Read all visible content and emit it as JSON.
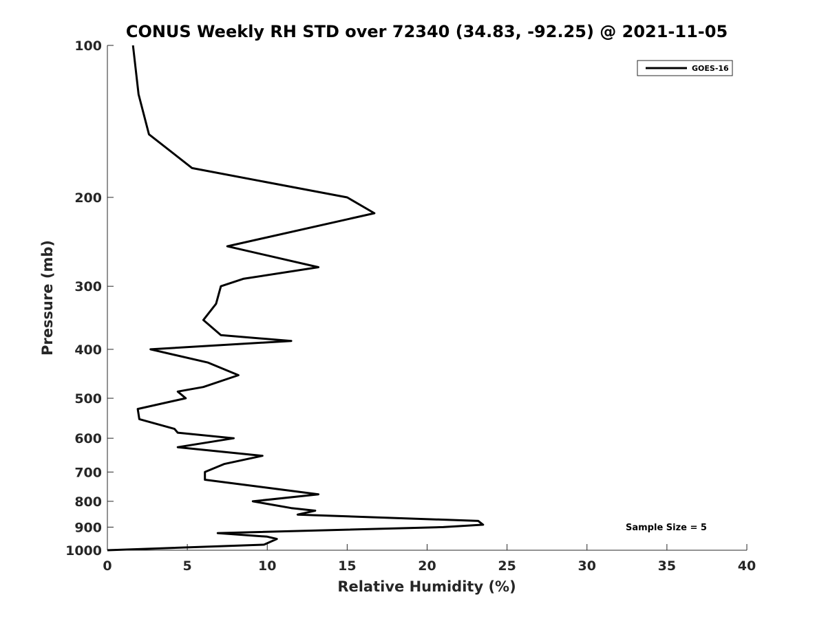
{
  "chart_data": {
    "type": "line",
    "title": "CONUS Weekly RH STD over 72340 (34.83, -92.25) @ 2021-11-05",
    "xlabel": "Relative Humidity (%)",
    "ylabel": "Pressure (mb)",
    "xlim": [
      0,
      40
    ],
    "ylim": [
      100,
      1000
    ],
    "y_scale": "log",
    "y_reversed": true,
    "grid": false,
    "legend_position": "top-right",
    "x_ticks": [
      0,
      5,
      10,
      15,
      20,
      25,
      30,
      35,
      40
    ],
    "x_tick_labels": [
      "0",
      "5",
      "10",
      "15",
      "20",
      "25",
      "30",
      "35",
      "40"
    ],
    "y_ticks": [
      100,
      200,
      300,
      400,
      500,
      600,
      700,
      800,
      900,
      1000
    ],
    "y_tick_labels": [
      "100",
      "200",
      "300",
      "400",
      "500",
      "600",
      "700",
      "800",
      "900",
      "1000"
    ],
    "annotation": "Sample Size = 5",
    "series": [
      {
        "name": "GOES-16",
        "color": "#000000",
        "points": [
          [
            1.6,
            100
          ],
          [
            1.95,
            125
          ],
          [
            2.6,
            150
          ],
          [
            5.3,
            175
          ],
          [
            15.0,
            200
          ],
          [
            16.7,
            215
          ],
          [
            7.5,
            250
          ],
          [
            13.2,
            275
          ],
          [
            8.5,
            290
          ],
          [
            7.1,
            300
          ],
          [
            6.8,
            325
          ],
          [
            6.0,
            350
          ],
          [
            7.1,
            375
          ],
          [
            11.5,
            385
          ],
          [
            2.7,
            400
          ],
          [
            6.3,
            425
          ],
          [
            8.2,
            450
          ],
          [
            6.0,
            475
          ],
          [
            4.4,
            485
          ],
          [
            4.9,
            500
          ],
          [
            1.9,
            525
          ],
          [
            2.0,
            550
          ],
          [
            4.2,
            575
          ],
          [
            4.4,
            585
          ],
          [
            7.9,
            600
          ],
          [
            4.4,
            625
          ],
          [
            9.7,
            650
          ],
          [
            7.3,
            675
          ],
          [
            6.1,
            700
          ],
          [
            6.1,
            725
          ],
          [
            9.7,
            750
          ],
          [
            13.2,
            775
          ],
          [
            9.1,
            800
          ],
          [
            11.5,
            825
          ],
          [
            13.0,
            835
          ],
          [
            11.9,
            850
          ],
          [
            23.2,
            875
          ],
          [
            23.5,
            890
          ],
          [
            21.0,
            900
          ],
          [
            6.9,
            925
          ],
          [
            10.0,
            940
          ],
          [
            10.6,
            950
          ],
          [
            9.8,
            975
          ],
          [
            0.0,
            1000
          ]
        ]
      }
    ]
  }
}
